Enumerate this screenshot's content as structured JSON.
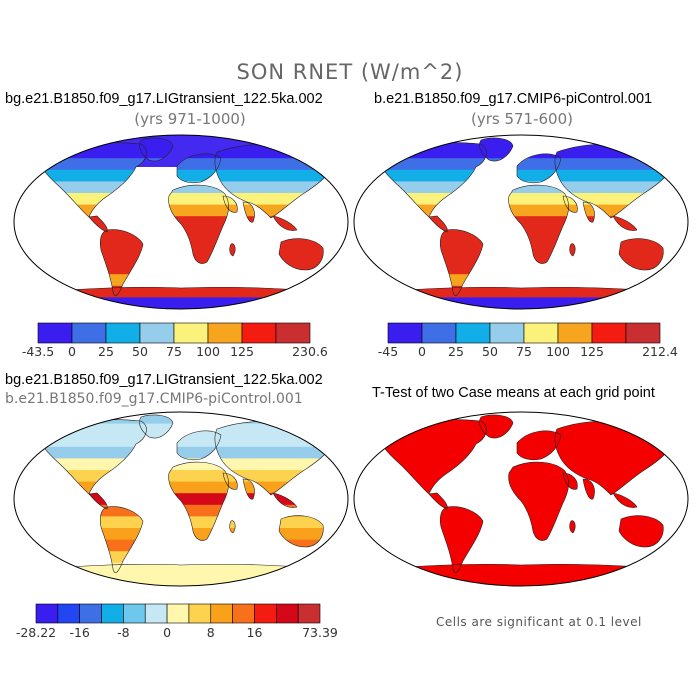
{
  "title": "SON RNET (W/m^2)",
  "panels": [
    {
      "title": "bg.e21.B1850.f09_g17.LIGtransient_122.5ka.002",
      "subtitle": "(yrs 971-1000)"
    },
    {
      "title": "b.e21.B1850.f09_g17.CMIP6-piControl.001",
      "subtitle": "(yrs 571-600)"
    },
    {
      "title": "bg.e21.B1850.f09_g17.LIGtransient_122.5ka.002",
      "subtitle": "b.e21.B1850.f09_g17.CMIP6-piControl.001"
    },
    {
      "title": "T-Test of two Case means at each grid point",
      "subtitle": ""
    }
  ],
  "colorbars": [
    {
      "colors": [
        "#3a1ef0",
        "#3f6fe6",
        "#12aee8",
        "#95cdea",
        "#faf27a",
        "#f7a51e",
        "#f41c10",
        "#c92f30"
      ],
      "labels": [
        "-43.5",
        "0",
        "25",
        "50",
        "75",
        "100",
        "125",
        "230.6"
      ]
    },
    {
      "colors": [
        "#3a1ef0",
        "#3f6fe6",
        "#12aee8",
        "#95cdea",
        "#faf27a",
        "#f7a51e",
        "#f41c10",
        "#c92f30"
      ],
      "labels": [
        "-45",
        "0",
        "25",
        "50",
        "75",
        "100",
        "125",
        "212.4"
      ]
    },
    {
      "colors": [
        "#3a1ef0",
        "#2247f2",
        "#3f6fe6",
        "#12aee8",
        "#6dc8ec",
        "#c6e8f5",
        "#fff7ad",
        "#fcd24f",
        "#f9a11b",
        "#f8711a",
        "#f41c10",
        "#d40818",
        "#c92f30"
      ],
      "labels": [
        "-28.22",
        "-16",
        "-8",
        "0",
        "8",
        "16",
        "73.39"
      ]
    }
  ],
  "note": "Cells are significant at 0.1 level"
}
